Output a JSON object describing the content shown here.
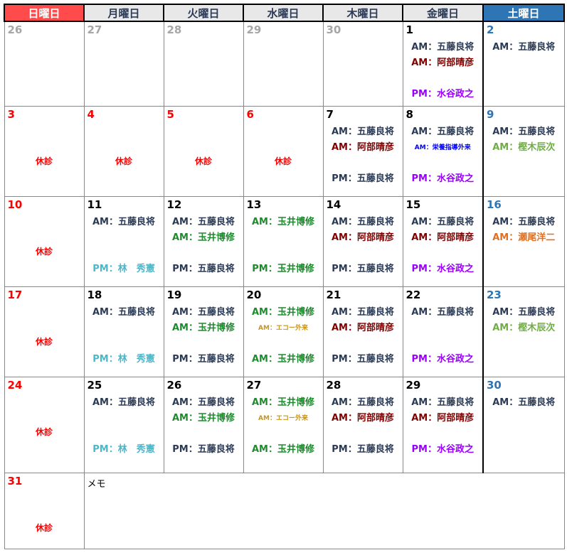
{
  "weekdays": [
    {
      "label": "日曜日",
      "type": "sun"
    },
    {
      "label": "月曜日",
      "type": ""
    },
    {
      "label": "火曜日",
      "type": ""
    },
    {
      "label": "水曜日",
      "type": ""
    },
    {
      "label": "木曜日",
      "type": ""
    },
    {
      "label": "金曜日",
      "type": ""
    },
    {
      "label": "土曜日",
      "type": "sat"
    }
  ],
  "colors": {
    "prev": "#a6a6a6",
    "weekday": "#000000",
    "sun": "#ff0000",
    "sat": "#2e75b6",
    "goto": "#2b3a55",
    "abe": "#800000",
    "mizutani": "#9900ff",
    "tamai": "#1e8a2e",
    "hayashi": "#4bb7c8",
    "seo": "#e07020",
    "kashiki": "#70ad47",
    "echo": "#c8961e",
    "eiyo": "#0000ff"
  },
  "closed_label": "休診",
  "memo_label": "メモ",
  "weeks": [
    {
      "h": 119,
      "days": [
        {
          "day": "26",
          "c": "prev"
        },
        {
          "day": "27",
          "c": "prev"
        },
        {
          "day": "28",
          "c": "prev"
        },
        {
          "day": "29",
          "c": "prev"
        },
        {
          "day": "30",
          "c": "prev"
        },
        {
          "day": "1",
          "c": "weekday",
          "lines": [
            {
              "t": "AM：五藤良将",
              "c": "goto"
            },
            {
              "t": "AM：阿部晴彦",
              "c": "abe"
            },
            {
              "t": "PM：水谷政之",
              "c": "mizutani"
            }
          ]
        },
        {
          "day": "2",
          "c": "sat",
          "lines": [
            {
              "t": "AM：五藤良将",
              "c": "goto"
            },
            null,
            null
          ]
        }
      ]
    },
    {
      "h": 127,
      "days": [
        {
          "day": "3",
          "c": "sun",
          "closed": true
        },
        {
          "day": "4",
          "c": "sun",
          "closed": true
        },
        {
          "day": "5",
          "c": "sun",
          "closed": true
        },
        {
          "day": "6",
          "c": "sun",
          "closed": true
        },
        {
          "day": "7",
          "c": "weekday",
          "lines": [
            {
              "t": "AM：五藤良将",
              "c": "goto"
            },
            {
              "t": "AM：阿部晴彦",
              "c": "abe"
            },
            {
              "t": "PM：五藤良将",
              "c": "goto"
            }
          ]
        },
        {
          "day": "8",
          "c": "weekday",
          "lines": [
            {
              "t": "AM：五藤良将",
              "c": "goto"
            },
            {
              "t": "AM：栄養指導外来",
              "c": "eiyo",
              "small": true
            },
            {
              "t": "PM：水谷政之",
              "c": "mizutani"
            }
          ]
        },
        {
          "day": "9",
          "c": "sat",
          "lines": [
            {
              "t": "AM：五藤良将",
              "c": "goto"
            },
            {
              "t": "AM：樫木辰次",
              "c": "kashiki"
            },
            null
          ]
        }
      ]
    },
    {
      "h": 127,
      "days": [
        {
          "day": "10",
          "c": "sun",
          "closed": true
        },
        {
          "day": "11",
          "c": "weekday",
          "lines": [
            {
              "t": "AM：五藤良将",
              "c": "goto"
            },
            null,
            {
              "t": "PM：林　秀憲",
              "c": "hayashi"
            }
          ]
        },
        {
          "day": "12",
          "c": "weekday",
          "lines": [
            {
              "t": "AM：五藤良将",
              "c": "goto"
            },
            {
              "t": "AM：玉井博修",
              "c": "tamai"
            },
            {
              "t": "PM：五藤良将",
              "c": "goto"
            }
          ]
        },
        {
          "day": "13",
          "c": "weekday",
          "lines": [
            {
              "t": "AM：玉井博修",
              "c": "tamai"
            },
            null,
            {
              "t": "PM：玉井博修",
              "c": "tamai"
            }
          ]
        },
        {
          "day": "14",
          "c": "weekday",
          "lines": [
            {
              "t": "AM：五藤良将",
              "c": "goto"
            },
            {
              "t": "AM：阿部晴彦",
              "c": "abe"
            },
            {
              "t": "PM：五藤良将",
              "c": "goto"
            }
          ]
        },
        {
          "day": "15",
          "c": "weekday",
          "lines": [
            {
              "t": "AM：五藤良将",
              "c": "goto"
            },
            {
              "t": "AM：阿部晴彦",
              "c": "abe"
            },
            {
              "t": "PM：水谷政之",
              "c": "mizutani"
            }
          ]
        },
        {
          "day": "16",
          "c": "sat",
          "lines": [
            {
              "t": "AM：五藤良将",
              "c": "goto"
            },
            {
              "t": "AM：瀬尾洋二",
              "c": "seo"
            },
            null
          ]
        }
      ]
    },
    {
      "h": 127,
      "days": [
        {
          "day": "17",
          "c": "sun",
          "closed": true
        },
        {
          "day": "18",
          "c": "weekday",
          "lines": [
            {
              "t": "AM：五藤良将",
              "c": "goto"
            },
            null,
            {
              "t": "PM：林　秀憲",
              "c": "hayashi"
            }
          ]
        },
        {
          "day": "19",
          "c": "weekday",
          "lines": [
            {
              "t": "AM：五藤良将",
              "c": "goto"
            },
            {
              "t": "AM：玉井博修",
              "c": "tamai"
            },
            {
              "t": "PM：五藤良将",
              "c": "goto"
            }
          ]
        },
        {
          "day": "20",
          "c": "weekday",
          "lines": [
            {
              "t": "AM：玉井博修",
              "c": "tamai"
            },
            {
              "t": "AM：エコー外来",
              "c": "echo",
              "small": true
            },
            {
              "t": "AM：玉井博修",
              "c": "tamai"
            }
          ]
        },
        {
          "day": "21",
          "c": "weekday",
          "lines": [
            {
              "t": "AM：五藤良将",
              "c": "goto"
            },
            {
              "t": "AM：阿部晴彦",
              "c": "abe"
            },
            {
              "t": "PM：五藤良将",
              "c": "goto"
            }
          ]
        },
        {
          "day": "22",
          "c": "weekday",
          "lines": [
            {
              "t": "AM：五藤良将",
              "c": "goto"
            },
            null,
            {
              "t": "PM：水谷政之",
              "c": "mizutani"
            }
          ]
        },
        {
          "day": "23",
          "c": "sat",
          "lines": [
            {
              "t": "AM：五藤良将",
              "c": "goto"
            },
            {
              "t": "AM：樫木辰次",
              "c": "kashiki"
            },
            null
          ]
        }
      ]
    },
    {
      "h": 135,
      "days": [
        {
          "day": "24",
          "c": "sun",
          "closed": true
        },
        {
          "day": "25",
          "c": "weekday",
          "lines": [
            {
              "t": "AM：五藤良将",
              "c": "goto"
            },
            null,
            {
              "t": "PM：林　秀憲",
              "c": "hayashi"
            }
          ]
        },
        {
          "day": "26",
          "c": "weekday",
          "lines": [
            {
              "t": "AM：五藤良将",
              "c": "goto"
            },
            {
              "t": "AM：玉井博修",
              "c": "tamai"
            },
            {
              "t": "PM：五藤良将",
              "c": "goto"
            }
          ]
        },
        {
          "day": "27",
          "c": "weekday",
          "lines": [
            {
              "t": "AM：玉井博修",
              "c": "tamai"
            },
            {
              "t": "AM：エコー外来",
              "c": "echo",
              "small": true
            },
            {
              "t": "AM：玉井博修",
              "c": "tamai"
            }
          ]
        },
        {
          "day": "28",
          "c": "weekday",
          "lines": [
            {
              "t": "AM：五藤良将",
              "c": "goto"
            },
            {
              "t": "AM：阿部晴彦",
              "c": "abe"
            },
            {
              "t": "PM：五藤良将",
              "c": "goto"
            }
          ]
        },
        {
          "day": "29",
          "c": "weekday",
          "lines": [
            {
              "t": "AM：五藤良将",
              "c": "goto"
            },
            {
              "t": "AM：阿部晴彦",
              "c": "abe"
            },
            {
              "t": "PM：水谷政之",
              "c": "mizutani"
            }
          ]
        },
        {
          "day": "30",
          "c": "sat",
          "lines": [
            {
              "t": "AM：五藤良将",
              "c": "goto"
            },
            null,
            null
          ]
        }
      ]
    },
    {
      "h": 107,
      "memo": true,
      "days": [
        {
          "day": "31",
          "c": "sun",
          "closed": true
        }
      ]
    }
  ]
}
